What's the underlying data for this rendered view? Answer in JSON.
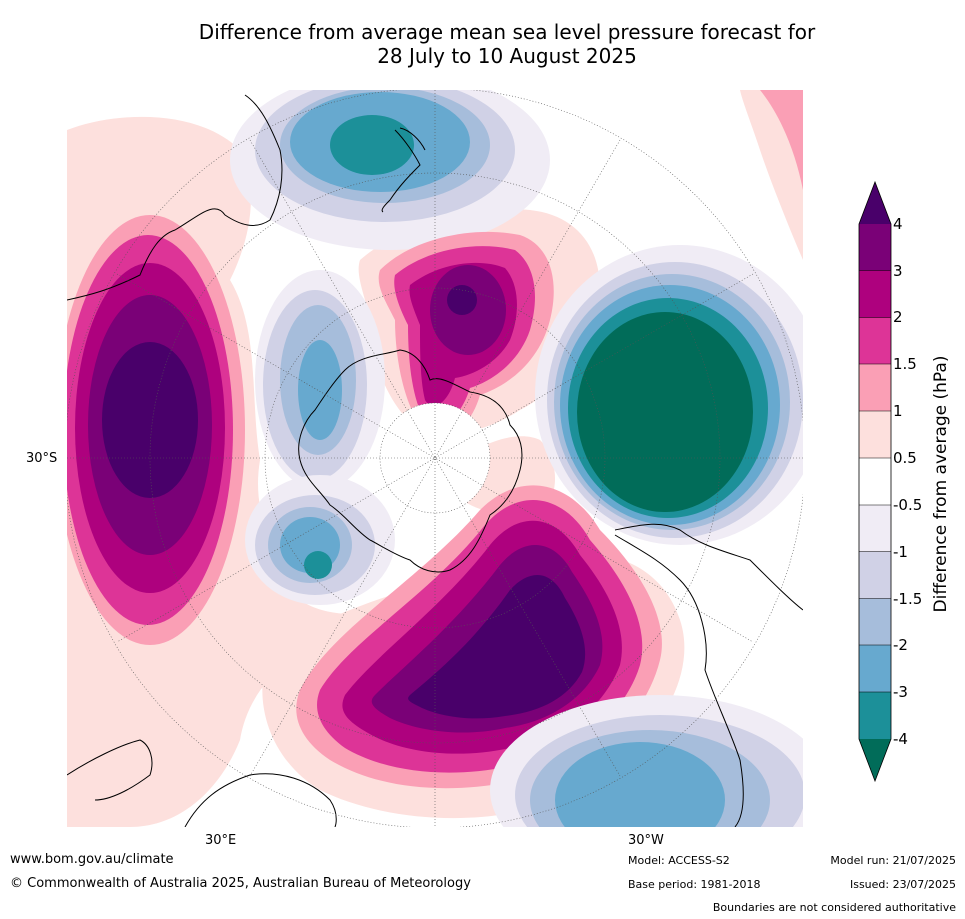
{
  "title": {
    "line1": "Difference from average mean sea level pressure forecast for",
    "line2": "28 July to 10 August 2025"
  },
  "map": {
    "lat_labels": [
      "30°S"
    ],
    "lon_labels": [
      "30°E",
      "30°W"
    ]
  },
  "colorbar": {
    "title": "Difference from average (hPa)",
    "ticks": [
      "4",
      "3",
      "2",
      "1.5",
      "1",
      "0.5",
      "-0.5",
      "-1",
      "-1.5",
      "-2",
      "-3",
      "-4"
    ],
    "bins": [
      {
        "range": "3 to 4",
        "color": "#7a0177"
      },
      {
        "range": "2 to 3",
        "color": "#ae017e"
      },
      {
        "range": "1.5 to 2",
        "color": "#dd3497"
      },
      {
        "range": "1 to 1.5",
        "color": "#fa9fb5"
      },
      {
        "range": "0.5 to 1",
        "color": "#fde0dd"
      },
      {
        "range": "-0.5 to 0.5",
        "color": "#ffffff"
      },
      {
        "range": "-1 to -0.5",
        "color": "#f0ecf5"
      },
      {
        "range": "-1.5 to -1",
        "color": "#d0d1e6"
      },
      {
        "range": "-2 to -1.5",
        "color": "#a6bddb"
      },
      {
        "range": "-3 to -2",
        "color": "#67a9cf"
      },
      {
        "range": "-4 to -3",
        "color": "#1c9099"
      }
    ],
    "over_color": "#49006a",
    "under_color": "#016c59"
  },
  "footer": {
    "website": "www.bom.gov.au/climate",
    "copyright": "© Commonwealth of Australia 2025, Australian Bureau of Meteorology",
    "model": "Model: ACCESS-S2",
    "base_period": "Base period: 1981-2018",
    "model_run": "Model run: 21/07/2025",
    "issued": "Issued: 23/07/2025",
    "disclaimer": "Boundaries are not considered authoritative"
  }
}
